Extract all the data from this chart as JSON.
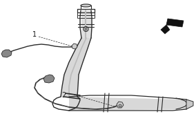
{
  "bg_color": "#ffffff",
  "line_color": "#2a2a2a",
  "dark_color": "#111111",
  "gray_color": "#888888",
  "light_gray": "#cccccc",
  "mid_gray": "#aaaaaa",
  "label1": "1",
  "label2": "2",
  "fig_width": 2.84,
  "fig_height": 1.78,
  "dpi": 100
}
